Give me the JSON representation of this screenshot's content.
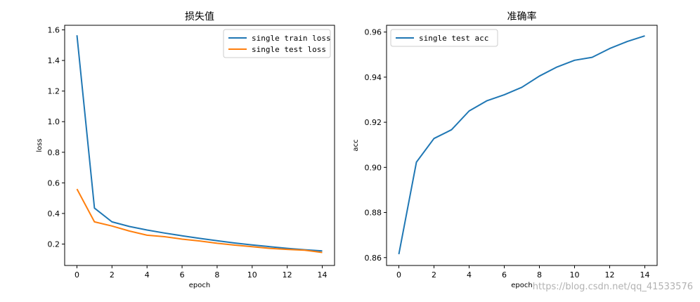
{
  "watermark": "https://blog.csdn.net/qq_41533576",
  "chart_data": [
    {
      "type": "line",
      "title": "损失值",
      "xlabel": "epoch",
      "ylabel": "loss",
      "x": [
        0,
        1,
        2,
        3,
        4,
        5,
        6,
        7,
        8,
        9,
        10,
        11,
        12,
        13,
        14
      ],
      "xlim": [
        -0.7,
        14.7
      ],
      "ylim": [
        0.06,
        1.63
      ],
      "xticks": [
        0,
        2,
        4,
        6,
        8,
        10,
        12,
        14
      ],
      "yticks": [
        0.2,
        0.4,
        0.6,
        0.8,
        1.0,
        1.2,
        1.4,
        1.6
      ],
      "legend": "top-right",
      "series": [
        {
          "name": "single train loss",
          "color": "#1f77b4",
          "values": [
            1.565,
            0.435,
            0.345,
            0.315,
            0.292,
            0.272,
            0.254,
            0.237,
            0.222,
            0.207,
            0.194,
            0.183,
            0.172,
            0.163,
            0.155
          ]
        },
        {
          "name": "single test loss",
          "color": "#ff7f0e",
          "values": [
            0.56,
            0.345,
            0.318,
            0.285,
            0.258,
            0.248,
            0.232,
            0.22,
            0.205,
            0.193,
            0.183,
            0.172,
            0.165,
            0.16,
            0.145
          ]
        }
      ]
    },
    {
      "type": "line",
      "title": "准确率",
      "xlabel": "epoch",
      "ylabel": "acc",
      "x": [
        0,
        1,
        2,
        3,
        4,
        5,
        6,
        7,
        8,
        9,
        10,
        11,
        12,
        13,
        14
      ],
      "xlim": [
        -0.7,
        14.7
      ],
      "ylim": [
        0.8565,
        0.963
      ],
      "xticks": [
        0,
        2,
        4,
        6,
        8,
        10,
        12,
        14
      ],
      "yticks": [
        0.86,
        0.88,
        0.9,
        0.92,
        0.94,
        0.96
      ],
      "legend": "top-left",
      "series": [
        {
          "name": "single test acc",
          "color": "#1f77b4",
          "values": [
            0.8615,
            0.9023,
            0.9128,
            0.9167,
            0.925,
            0.9295,
            0.9322,
            0.9355,
            0.9405,
            0.9445,
            0.9475,
            0.9488,
            0.9527,
            0.9558,
            0.9583
          ]
        }
      ]
    }
  ]
}
